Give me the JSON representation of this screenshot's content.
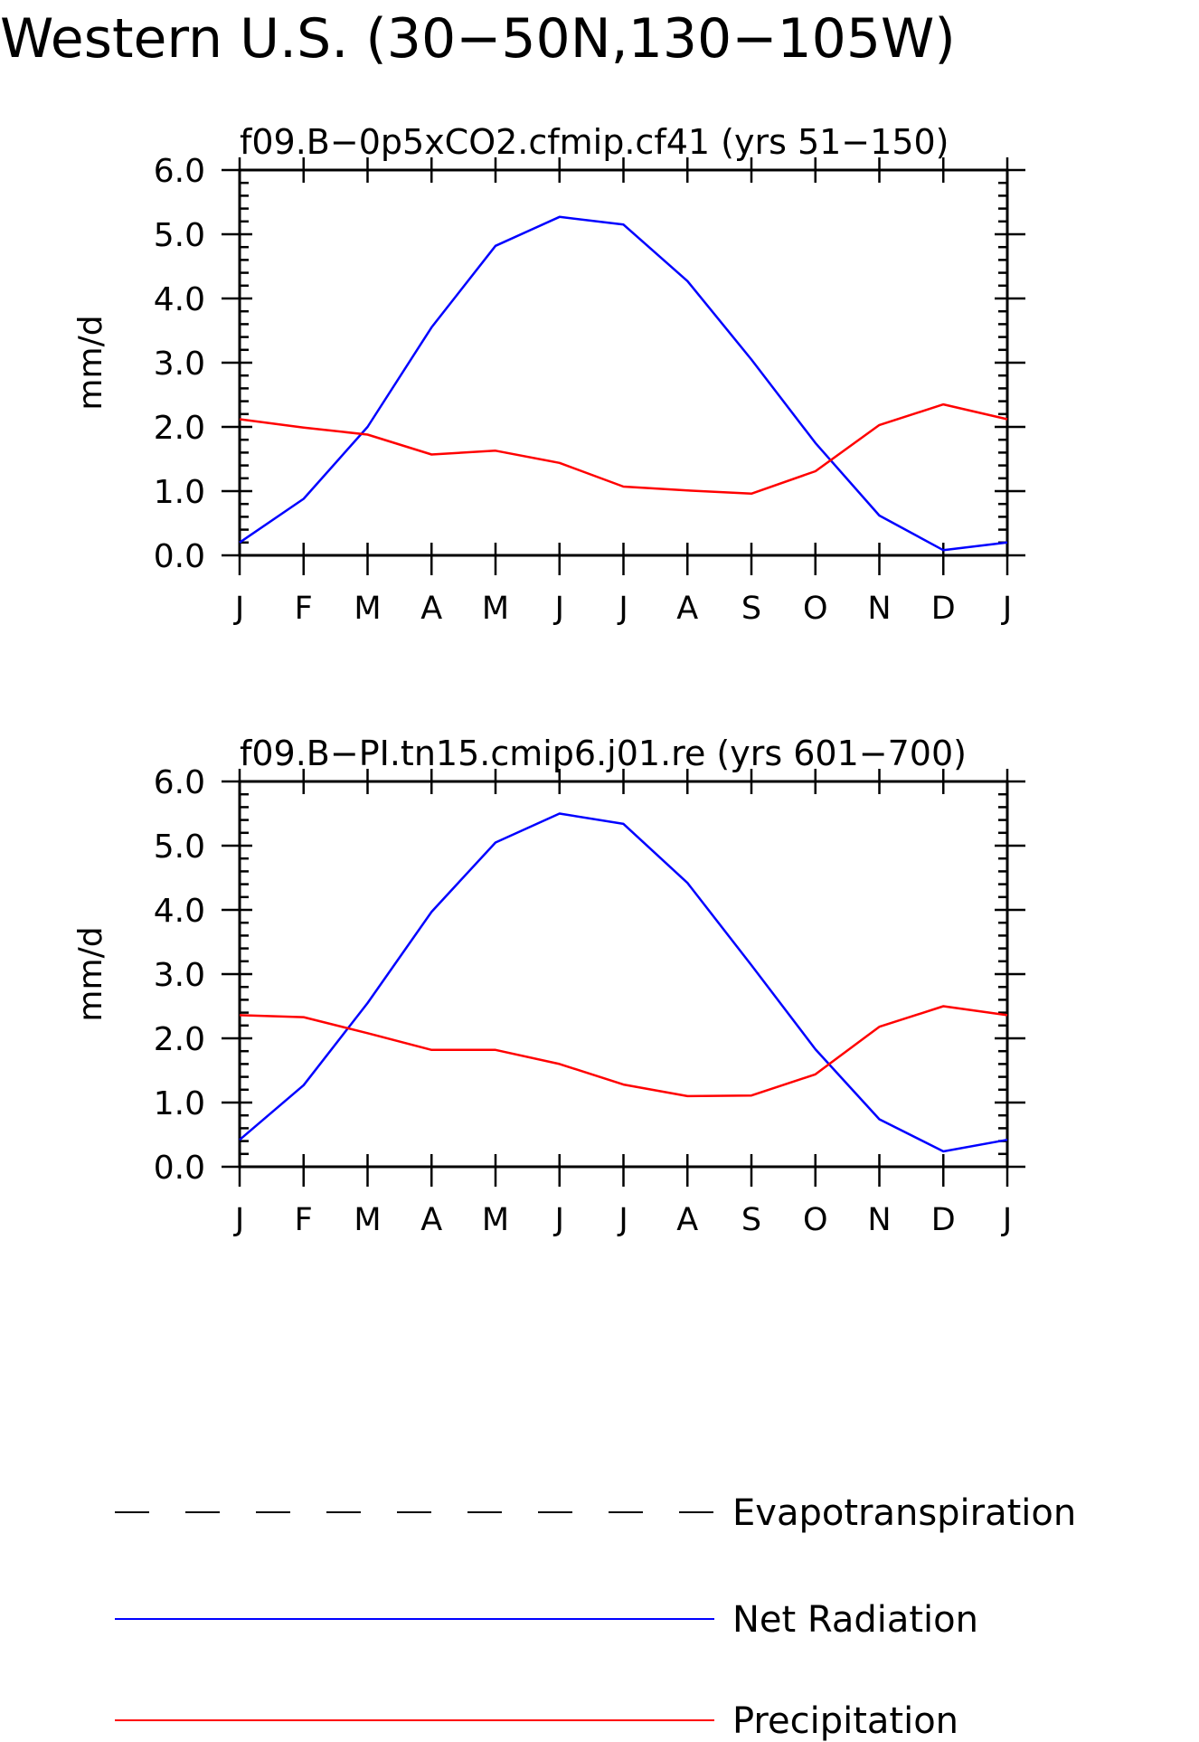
{
  "title": "Western U.S. (30−50N,130−105W)",
  "legend": {
    "items": [
      {
        "label": "Evapotranspiration",
        "color": "#000000",
        "style": "dashed"
      },
      {
        "label": "Net Radiation",
        "color": "#0000ff",
        "style": "solid"
      },
      {
        "label": "Precipitation",
        "color": "#ff0000",
        "style": "solid"
      }
    ]
  },
  "chart_data": [
    {
      "type": "line",
      "title": "f09.B−0p5xCO2.cfmip.cf41 (yrs 51−150)",
      "xlabel": "",
      "ylabel": "mm/d",
      "categories": [
        "J",
        "F",
        "M",
        "A",
        "M",
        "J",
        "J",
        "A",
        "S",
        "O",
        "N",
        "D",
        "J"
      ],
      "ylim": [
        0,
        6
      ],
      "yticks": [
        "0.0",
        "1.0",
        "2.0",
        "3.0",
        "4.0",
        "5.0",
        "6.0"
      ],
      "series": [
        {
          "name": "Net Radiation",
          "color": "#0000ff",
          "values": [
            0.2,
            0.88,
            2.0,
            3.55,
            4.82,
            5.27,
            5.15,
            4.27,
            3.05,
            1.75,
            0.62,
            0.08,
            0.2
          ]
        },
        {
          "name": "Precipitation",
          "color": "#ff0000",
          "values": [
            2.12,
            1.99,
            1.88,
            1.57,
            1.63,
            1.44,
            1.07,
            1.01,
            0.96,
            1.31,
            2.03,
            2.35,
            2.12
          ]
        }
      ]
    },
    {
      "type": "line",
      "title": "f09.B−PI.tn15.cmip6.j01.re (yrs 601−700)",
      "xlabel": "",
      "ylabel": "mm/d",
      "categories": [
        "J",
        "F",
        "M",
        "A",
        "M",
        "J",
        "J",
        "A",
        "S",
        "O",
        "N",
        "D",
        "J"
      ],
      "ylim": [
        0,
        6
      ],
      "yticks": [
        "0.0",
        "1.0",
        "2.0",
        "3.0",
        "4.0",
        "5.0",
        "6.0"
      ],
      "series": [
        {
          "name": "Net Radiation",
          "color": "#0000ff",
          "values": [
            0.42,
            1.27,
            2.55,
            3.97,
            5.05,
            5.5,
            5.34,
            4.42,
            3.14,
            1.83,
            0.74,
            0.24,
            0.42
          ]
        },
        {
          "name": "Precipitation",
          "color": "#ff0000",
          "values": [
            2.36,
            2.33,
            2.08,
            1.82,
            1.82,
            1.6,
            1.28,
            1.1,
            1.11,
            1.44,
            2.18,
            2.5,
            2.36
          ]
        }
      ]
    }
  ]
}
